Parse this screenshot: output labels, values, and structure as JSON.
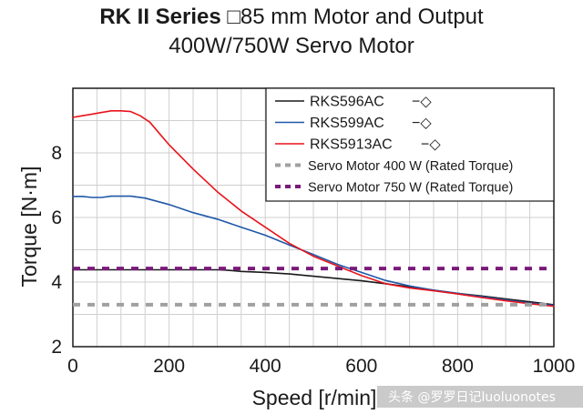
{
  "header": {
    "title_bold": "RK II Series",
    "title_rest": "□85 mm Motor and Output",
    "subtitle": "400W/750W Servo Motor"
  },
  "watermark": "头条 @罗罗日记luoluonotes",
  "chart_data": {
    "type": "line",
    "xlabel": "Speed [r/min]",
    "ylabel": "Torque [N·m]",
    "xlim": [
      0,
      1000
    ],
    "ylim": [
      2,
      10
    ],
    "xticks": [
      0,
      200,
      400,
      600,
      800,
      1000
    ],
    "yticks": [
      2,
      4,
      6,
      8
    ],
    "grid": true,
    "legend_position": "top-right",
    "series": [
      {
        "name": "RKS596AC",
        "suffix": "−◇",
        "color": "#1a1a1a",
        "style": "solid",
        "x": [
          0,
          50,
          100,
          150,
          200,
          250,
          300,
          320,
          350,
          400,
          450,
          500,
          550,
          600,
          650,
          700,
          750,
          800,
          850,
          900,
          950,
          1000
        ],
        "y": [
          4.38,
          4.38,
          4.38,
          4.38,
          4.38,
          4.38,
          4.38,
          4.37,
          4.33,
          4.3,
          4.25,
          4.18,
          4.11,
          4.04,
          3.95,
          3.85,
          3.75,
          3.65,
          3.57,
          3.48,
          3.39,
          3.3
        ]
      },
      {
        "name": "RKS599AC",
        "suffix": "−◇",
        "color": "#1f57a8",
        "style": "solid",
        "x": [
          0,
          20,
          40,
          60,
          80,
          100,
          120,
          150,
          200,
          250,
          300,
          350,
          400,
          450,
          500,
          550,
          600,
          650,
          700,
          750,
          800,
          850,
          900,
          950,
          1000
        ],
        "y": [
          6.65,
          6.65,
          6.62,
          6.62,
          6.66,
          6.66,
          6.66,
          6.6,
          6.4,
          6.15,
          5.95,
          5.7,
          5.45,
          5.15,
          4.85,
          4.55,
          4.3,
          4.05,
          3.88,
          3.75,
          3.65,
          3.55,
          3.45,
          3.35,
          3.28
        ]
      },
      {
        "name": "RKS5913AC",
        "suffix": "−◇",
        "color": "#e8131a",
        "style": "solid",
        "x": [
          0,
          20,
          40,
          60,
          80,
          100,
          120,
          140,
          160,
          180,
          200,
          250,
          300,
          350,
          400,
          450,
          500,
          550,
          600,
          650,
          700,
          750,
          800,
          850,
          900,
          950,
          1000
        ],
        "y": [
          9.1,
          9.15,
          9.2,
          9.25,
          9.3,
          9.3,
          9.28,
          9.15,
          8.95,
          8.6,
          8.25,
          7.5,
          6.8,
          6.2,
          5.7,
          5.2,
          4.8,
          4.5,
          4.2,
          3.95,
          3.82,
          3.73,
          3.63,
          3.52,
          3.42,
          3.33,
          3.25
        ]
      },
      {
        "name": "Servo Motor 400 W (Rated Torque)",
        "color": "#a0a0a0",
        "style": "dashed",
        "x": [
          0,
          1000
        ],
        "y": [
          3.3,
          3.3
        ]
      },
      {
        "name": "Servo Motor 750 W (Rated Torque)",
        "color": "#7a1a7a",
        "style": "dashed",
        "x": [
          0,
          1000
        ],
        "y": [
          4.42,
          4.42
        ]
      }
    ]
  }
}
